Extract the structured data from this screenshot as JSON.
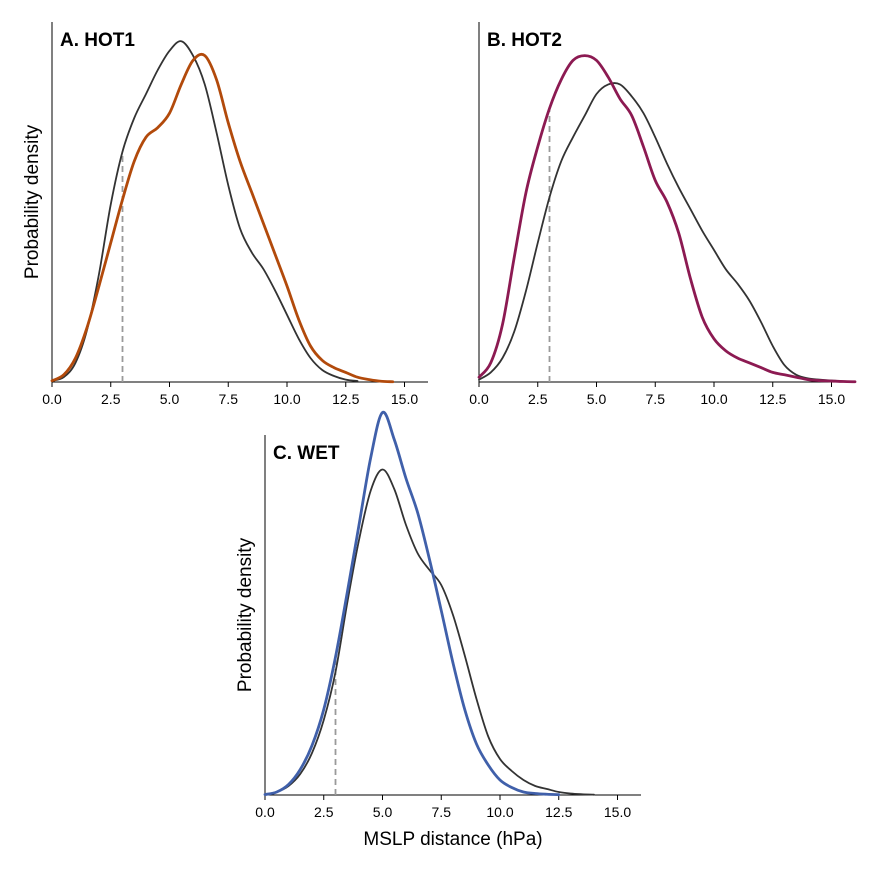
{
  "colors": {
    "reference_curve": "#333333",
    "threshold_line": "#9a9a9a",
    "axis": "#000000"
  },
  "chart_data": [
    {
      "type": "line",
      "title": "A. HOT1",
      "xlabel": "",
      "ylabel": "Probability density",
      "xlim": [
        0,
        16
      ],
      "ylim": [
        0,
        0.15
      ],
      "xticks": [
        "0.0",
        "2.5",
        "5.0",
        "7.5",
        "10.0",
        "12.5",
        "15.0"
      ],
      "yticks": [],
      "grid": false,
      "threshold_x": 3.0,
      "series": [
        {
          "color": "#333333",
          "width": 1.8,
          "x": [
            0,
            0.5,
            1,
            1.5,
            2,
            2.5,
            3,
            3.5,
            4,
            4.5,
            5,
            5.5,
            6,
            6.5,
            7,
            7.5,
            8,
            8.5,
            9,
            9.5,
            10,
            10.5,
            11,
            11.5,
            12,
            12.5,
            13
          ],
          "y": [
            0.0005,
            0.002,
            0.008,
            0.022,
            0.045,
            0.074,
            0.096,
            0.11,
            0.12,
            0.13,
            0.138,
            0.142,
            0.136,
            0.124,
            0.104,
            0.082,
            0.064,
            0.054,
            0.047,
            0.038,
            0.028,
            0.018,
            0.01,
            0.005,
            0.0025,
            0.001,
            0.0004
          ]
        },
        {
          "color": "#b24a0b",
          "width": 2.8,
          "x": [
            0,
            0.5,
            1,
            1.5,
            2,
            2.5,
            3,
            3.5,
            4,
            4.5,
            5,
            5.5,
            6,
            6.5,
            7,
            7.5,
            8,
            8.5,
            9,
            9.5,
            10,
            10.5,
            11,
            11.5,
            12,
            12.5,
            13,
            13.5,
            14,
            14.5
          ],
          "y": [
            0.0005,
            0.003,
            0.01,
            0.023,
            0.04,
            0.058,
            0.076,
            0.092,
            0.102,
            0.106,
            0.112,
            0.124,
            0.134,
            0.136,
            0.126,
            0.108,
            0.092,
            0.079,
            0.066,
            0.053,
            0.04,
            0.026,
            0.015,
            0.009,
            0.006,
            0.004,
            0.002,
            0.001,
            0.0003,
            0.0001
          ]
        }
      ]
    },
    {
      "type": "line",
      "title": "B. HOT2",
      "xlabel": "",
      "ylabel": "",
      "xlim": [
        0,
        16
      ],
      "ylim": [
        0,
        0.15
      ],
      "xticks": [
        "0.0",
        "2.5",
        "5.0",
        "7.5",
        "10.0",
        "12.5",
        "15.0"
      ],
      "yticks": [],
      "grid": false,
      "threshold_x": 3.0,
      "series": [
        {
          "color": "#333333",
          "width": 1.8,
          "x": [
            0,
            0.5,
            1,
            1.5,
            2,
            2.5,
            3,
            3.5,
            4,
            4.5,
            5,
            5.5,
            6,
            6.5,
            7,
            7.5,
            8,
            8.5,
            9,
            9.5,
            10,
            10.5,
            11,
            11.5,
            12,
            12.5,
            13,
            13.5,
            14,
            14.5,
            15,
            15.5,
            16
          ],
          "y": [
            0.001,
            0.004,
            0.01,
            0.021,
            0.038,
            0.058,
            0.077,
            0.092,
            0.102,
            0.111,
            0.12,
            0.124,
            0.124,
            0.119,
            0.112,
            0.102,
            0.091,
            0.081,
            0.072,
            0.063,
            0.055,
            0.047,
            0.041,
            0.034,
            0.025,
            0.015,
            0.007,
            0.003,
            0.0015,
            0.001,
            0.0006,
            0.0003,
            0.0002
          ]
        },
        {
          "color": "#8c1a52",
          "width": 2.8,
          "x": [
            0,
            0.5,
            1,
            1.5,
            2,
            2.5,
            3,
            3.5,
            4,
            4.5,
            5,
            5.5,
            6,
            6.5,
            7,
            7.5,
            8,
            8.5,
            9,
            9.5,
            10,
            10.5,
            11,
            11.5,
            12,
            12.5,
            13,
            13.5,
            14,
            14.5,
            15,
            15.5,
            16
          ],
          "y": [
            0.002,
            0.008,
            0.024,
            0.052,
            0.079,
            0.098,
            0.114,
            0.126,
            0.134,
            0.136,
            0.134,
            0.127,
            0.118,
            0.111,
            0.098,
            0.084,
            0.075,
            0.062,
            0.043,
            0.027,
            0.018,
            0.013,
            0.01,
            0.008,
            0.006,
            0.004,
            0.003,
            0.002,
            0.001,
            0.0006,
            0.0004,
            0.0002,
            0.0001
          ]
        }
      ]
    },
    {
      "type": "line",
      "title": "C. WET",
      "xlabel": "MSLP distance (hPa)",
      "ylabel": "Probability density",
      "xlim": [
        0,
        16
      ],
      "ylim": [
        0,
        0.24
      ],
      "xticks": [
        "0.0",
        "2.5",
        "5.0",
        "7.5",
        "10.0",
        "12.5",
        "15.0"
      ],
      "yticks": [],
      "grid": false,
      "threshold_x": 3.0,
      "series": [
        {
          "color": "#333333",
          "width": 1.8,
          "x": [
            0,
            0.5,
            1,
            1.5,
            2,
            2.5,
            3,
            3.5,
            4,
            4.5,
            5,
            5.5,
            6,
            6.5,
            7,
            7.5,
            8,
            8.5,
            9,
            9.5,
            10,
            10.5,
            11,
            11.5,
            12,
            12.5,
            13,
            13.5,
            14
          ],
          "y": [
            0.0003,
            0.002,
            0.006,
            0.014,
            0.028,
            0.05,
            0.082,
            0.128,
            0.17,
            0.203,
            0.217,
            0.204,
            0.18,
            0.161,
            0.15,
            0.14,
            0.12,
            0.093,
            0.064,
            0.039,
            0.024,
            0.016,
            0.01,
            0.006,
            0.004,
            0.002,
            0.001,
            0.0005,
            0.0002
          ]
        },
        {
          "color": "#4060aa",
          "width": 2.8,
          "x": [
            0,
            0.5,
            1,
            1.5,
            2,
            2.5,
            3,
            3.5,
            4,
            4.5,
            5,
            5.5,
            6,
            6.5,
            7,
            7.5,
            8,
            8.5,
            9,
            9.5,
            10,
            10.5,
            11,
            11.5,
            12,
            12.5
          ],
          "y": [
            0.0003,
            0.002,
            0.007,
            0.017,
            0.033,
            0.057,
            0.092,
            0.135,
            0.18,
            0.225,
            0.255,
            0.237,
            0.211,
            0.188,
            0.157,
            0.123,
            0.088,
            0.057,
            0.034,
            0.02,
            0.01,
            0.005,
            0.002,
            0.001,
            0.0005,
            0.0002
          ]
        }
      ]
    }
  ]
}
